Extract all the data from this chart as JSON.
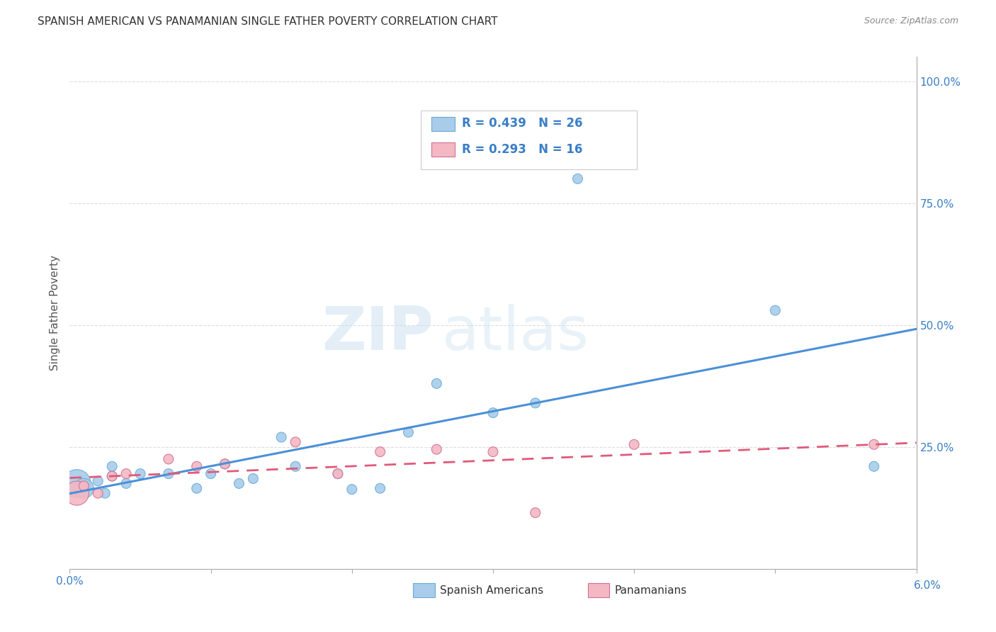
{
  "title": "SPANISH AMERICAN VS PANAMANIAN SINGLE FATHER POVERTY CORRELATION CHART",
  "source": "Source: ZipAtlas.com",
  "ylabel": "Single Father Poverty",
  "y_ticks": [
    0.0,
    0.25,
    0.5,
    0.75,
    1.0
  ],
  "y_tick_labels": [
    "",
    "25.0%",
    "50.0%",
    "75.0%",
    "100.0%"
  ],
  "x_range": [
    0.0,
    0.06
  ],
  "y_range": [
    0.0,
    1.05
  ],
  "watermark_zip": "ZIP",
  "watermark_atlas": "atlas",
  "blue_R": 0.439,
  "blue_N": 26,
  "pink_R": 0.293,
  "pink_N": 16,
  "blue_color": "#A8CCEA",
  "pink_color": "#F4B8C4",
  "blue_line_color": "#4A90D9",
  "pink_line_color": "#E05A7A",
  "blue_edge_color": "#6AAAD4",
  "pink_edge_color": "#D07090",
  "spanish_american_x": [
    0.0005,
    0.001,
    0.002,
    0.0025,
    0.003,
    0.003,
    0.004,
    0.005,
    0.007,
    0.009,
    0.01,
    0.011,
    0.012,
    0.013,
    0.015,
    0.016,
    0.019,
    0.02,
    0.022,
    0.024,
    0.026,
    0.03,
    0.033,
    0.036,
    0.05,
    0.057
  ],
  "spanish_american_y": [
    0.175,
    0.165,
    0.18,
    0.155,
    0.19,
    0.21,
    0.175,
    0.195,
    0.195,
    0.165,
    0.195,
    0.215,
    0.175,
    0.185,
    0.27,
    0.21,
    0.195,
    0.163,
    0.165,
    0.28,
    0.38,
    0.32,
    0.34,
    0.8,
    0.53,
    0.21
  ],
  "spanish_american_size": [
    800,
    400,
    100,
    100,
    100,
    100,
    100,
    100,
    100,
    100,
    100,
    100,
    100,
    100,
    100,
    100,
    100,
    100,
    100,
    100,
    100,
    100,
    100,
    100,
    100,
    100
  ],
  "panamanian_x": [
    0.0005,
    0.001,
    0.002,
    0.003,
    0.004,
    0.007,
    0.009,
    0.011,
    0.016,
    0.019,
    0.022,
    0.026,
    0.03,
    0.033,
    0.04,
    0.057
  ],
  "panamanian_y": [
    0.155,
    0.17,
    0.155,
    0.19,
    0.195,
    0.225,
    0.21,
    0.215,
    0.26,
    0.195,
    0.24,
    0.245,
    0.24,
    0.115,
    0.255,
    0.255
  ],
  "panamanian_size": [
    600,
    100,
    100,
    100,
    100,
    100,
    100,
    100,
    100,
    100,
    100,
    100,
    100,
    100,
    100,
    100
  ],
  "background_color": "#FFFFFF",
  "grid_color": "#DDDDDD",
  "legend_label_blue": "Spanish Americans",
  "legend_label_pink": "Panamanians"
}
